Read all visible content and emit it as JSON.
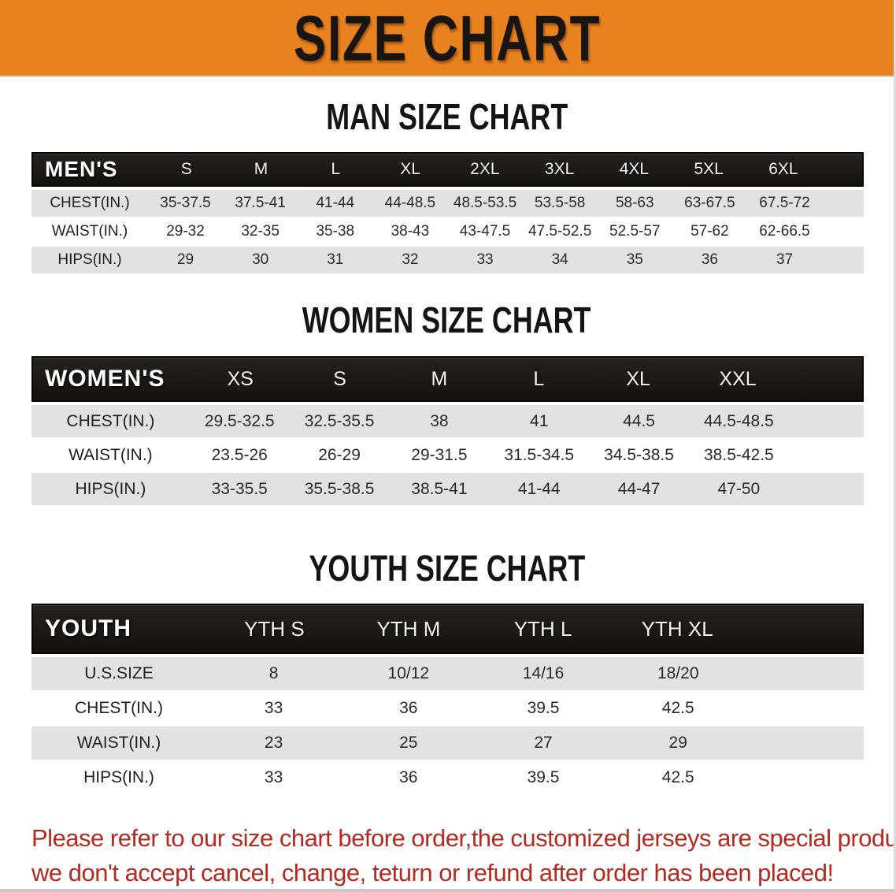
{
  "banner": {
    "title": "SIZE CHART"
  },
  "men": {
    "heading": "MAN SIZE CHART",
    "header": {
      "label": "MEN'S",
      "sizes": [
        "S",
        "M",
        "L",
        "XL",
        "2XL",
        "3XL",
        "4XL",
        "5XL",
        "6XL"
      ]
    },
    "rows": [
      {
        "label": "CHEST(IN.)",
        "values": [
          "35-37.5",
          "37.5-41",
          "41-44",
          "44-48.5",
          "48.5-53.5",
          "53.5-58",
          "58-63",
          "63-67.5",
          "67.5-72"
        ]
      },
      {
        "label": "WAIST(IN.)",
        "values": [
          "29-32",
          "32-35",
          "35-38",
          "38-43",
          "43-47.5",
          "47.5-52.5",
          "52.5-57",
          "57-62",
          "62-66.5"
        ]
      },
      {
        "label": "HIPS(IN.)",
        "values": [
          "29",
          "30",
          "31",
          "32",
          "33",
          "34",
          "35",
          "36",
          "37"
        ]
      }
    ]
  },
  "women": {
    "heading": "WOMEN SIZE CHART",
    "header": {
      "label": "WOMEN'S",
      "sizes": [
        "XS",
        "S",
        "M",
        "L",
        "XL",
        "XXL"
      ]
    },
    "rows": [
      {
        "label": "CHEST(IN.)",
        "values": [
          "29.5-32.5",
          "32.5-35.5",
          "38",
          "41",
          "44.5",
          "44.5-48.5"
        ]
      },
      {
        "label": "WAIST(IN.)",
        "values": [
          "23.5-26",
          "26-29",
          "29-31.5",
          "31.5-34.5",
          "34.5-38.5",
          "38.5-42.5"
        ]
      },
      {
        "label": "HIPS(IN.)",
        "values": [
          "33-35.5",
          "35.5-38.5",
          "38.5-41",
          "41-44",
          "44-47",
          "47-50"
        ]
      }
    ]
  },
  "youth": {
    "heading": "YOUTH SIZE CHART",
    "header": {
      "label": "YOUTH",
      "sizes": [
        "YTH S",
        "YTH M",
        "YTH L",
        "YTH XL"
      ]
    },
    "rows": [
      {
        "label": "U.S.SIZE",
        "values": [
          "8",
          "10/12",
          "14/16",
          "18/20"
        ]
      },
      {
        "label": "CHEST(IN.)",
        "values": [
          "33",
          "36",
          "39.5",
          "42.5"
        ]
      },
      {
        "label": "WAIST(IN.)",
        "values": [
          "23",
          "25",
          "27",
          "29"
        ]
      },
      {
        "label": "HIPS(IN.)",
        "values": [
          "33",
          "36",
          "39.5",
          "42.5"
        ]
      }
    ]
  },
  "disclaimer": {
    "line1": "Please refer to our size chart before order,the customized jerseys are special products,",
    "line2": "we don't accept cancel, change, teturn or refund after order has been placed!"
  },
  "colors": {
    "banner_orange": "#e8821e",
    "header_black": "#1b1717",
    "row_gray": "#e3e2e2",
    "row_white": "#ffffff",
    "disclaimer_red": "#b22b23"
  }
}
